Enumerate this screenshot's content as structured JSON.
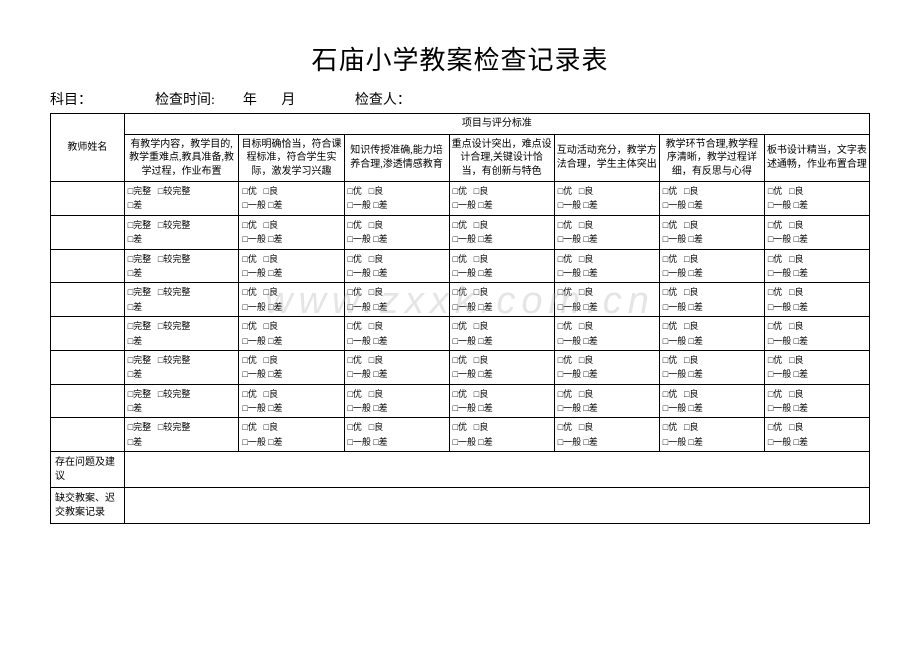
{
  "title": "石庙小学教案检查记录表",
  "meta": {
    "subject_label": "科目：",
    "time_label": "检查时间:",
    "year": "年",
    "month": "月",
    "inspector_label": "检查人：",
    "spacer1": "                  ",
    "spacer2": "        ",
    "spacer3": "       ",
    "spacer4": "                 "
  },
  "headers": {
    "teacher_name": "教师姓名",
    "criteria_group": "项目与评分标准",
    "criteria": [
      "有教学内容，教学目的,教学重难点,教具准备,教学过程，作业布置",
      "目标明确恰当，符合课程标准，符合学生实际，激发学习兴趣",
      "知识传授准确,能力培养合理,渗透情感教育",
      "重点设计突出，难点设计合理,关键设计恰当，有创新与特色",
      "互动活动充分，教学方法合理，学生主体突出",
      "教学环节合理,教学程序清晰，教学过程详细，有反思与心得",
      "板书设计精当，文字表述通畅，作业布置合理"
    ]
  },
  "rating_sets": {
    "first_col": {
      "line1_a": "□完整",
      "line1_b": "□较完整",
      "line2_a": "□差",
      "line2_b": ""
    },
    "other_cols": {
      "line1_a": "□优",
      "line1_b": "□良",
      "line2_a": "□一般",
      "line2_b": "□差"
    }
  },
  "row_count": 8,
  "footer": {
    "problems_label": "存在问题及建议",
    "missing_label": "缺交教案、迟交教案记录"
  },
  "watermark": "www.zxxk.com.cn"
}
